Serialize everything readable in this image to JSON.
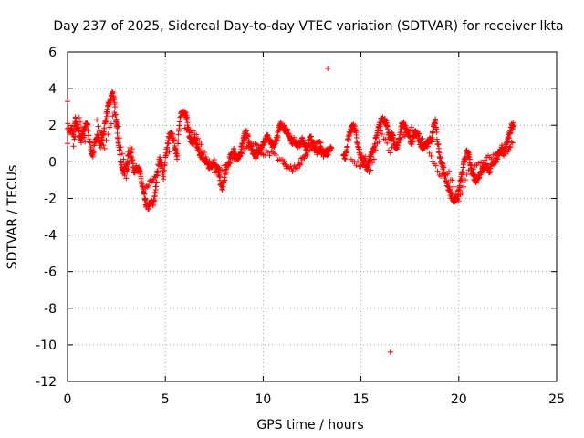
{
  "chart_data": {
    "type": "scatter",
    "title": "Day 237 of 2025, Sidereal Day-to-day VTEC variation (SDTVAR) for receiver lkta",
    "xlabel": "GPS time / hours",
    "ylabel": "SDTVAR / TECUs",
    "xlim": [
      0,
      25
    ],
    "ylim": [
      -12,
      6
    ],
    "xticks": [
      0,
      5,
      10,
      15,
      20,
      25
    ],
    "yticks": [
      -12,
      -10,
      -8,
      -6,
      -4,
      -2,
      0,
      2,
      4,
      6
    ],
    "x_tick_labels": [
      "0",
      "5",
      "10",
      "15",
      "20",
      "25"
    ],
    "y_tick_labels": [
      "-12",
      "-10",
      "-8",
      "-6",
      "-4",
      "-2",
      "0",
      "2",
      "4",
      "6"
    ],
    "grid": true,
    "marker": "+",
    "color": "#ff0000",
    "series": [
      {
        "name": "SDTVAR",
        "trace": [
          [
            0.0,
            2.0
          ],
          [
            0.1,
            1.6
          ],
          [
            0.2,
            1.8
          ],
          [
            0.3,
            1.4
          ],
          [
            0.4,
            2.3
          ],
          [
            0.5,
            1.9
          ],
          [
            0.6,
            1.5
          ],
          [
            0.7,
            1.2
          ],
          [
            0.8,
            1.7
          ],
          [
            0.9,
            1.9
          ],
          [
            1.0,
            2.1
          ],
          [
            1.1,
            1.3
          ],
          [
            1.2,
            0.6
          ],
          [
            1.3,
            0.4
          ],
          [
            1.4,
            1.0
          ],
          [
            1.5,
            1.5
          ],
          [
            1.6,
            1.2
          ],
          [
            1.7,
            0.9
          ],
          [
            1.8,
            1.4
          ],
          [
            1.9,
            2.0
          ],
          [
            2.0,
            2.6
          ],
          [
            2.1,
            3.1
          ],
          [
            2.2,
            3.4
          ],
          [
            2.3,
            3.8
          ],
          [
            2.4,
            3.2
          ],
          [
            2.5,
            2.0
          ],
          [
            2.6,
            1.0
          ],
          [
            2.7,
            0.2
          ],
          [
            2.8,
            -0.4
          ],
          [
            2.9,
            -0.7
          ],
          [
            3.0,
            -0.2
          ],
          [
            3.1,
            0.4
          ],
          [
            3.2,
            0.6
          ],
          [
            3.3,
            0.1
          ],
          [
            3.4,
            -0.5
          ],
          [
            3.5,
            -0.4
          ],
          [
            3.6,
            -0.3
          ],
          [
            3.7,
            -0.6
          ],
          [
            3.8,
            -1.2
          ],
          [
            3.9,
            -1.8
          ],
          [
            4.0,
            -2.3
          ],
          [
            4.1,
            -2.5
          ],
          [
            4.2,
            -2.4
          ],
          [
            4.3,
            -2.2
          ],
          [
            4.4,
            -2.3
          ],
          [
            4.5,
            -1.5
          ],
          [
            4.6,
            -0.5
          ],
          [
            4.7,
            0.2
          ],
          [
            4.8,
            -0.2
          ],
          [
            4.9,
            -0.8
          ],
          [
            5.0,
            0.2
          ],
          [
            5.1,
            0.8
          ],
          [
            5.2,
            1.4
          ],
          [
            5.3,
            1.5
          ],
          [
            5.4,
            1.3
          ],
          [
            5.5,
            0.8
          ],
          [
            5.6,
            0.3
          ],
          [
            5.7,
            1.8
          ],
          [
            5.8,
            2.6
          ],
          [
            5.9,
            2.7
          ],
          [
            6.0,
            2.8
          ],
          [
            6.1,
            2.4
          ],
          [
            6.2,
            1.6
          ],
          [
            6.3,
            1.2
          ],
          [
            6.4,
            1.0
          ],
          [
            6.5,
            1.2
          ],
          [
            6.6,
            0.9
          ],
          [
            6.7,
            0.6
          ],
          [
            6.8,
            0.4
          ],
          [
            6.9,
            0.2
          ],
          [
            7.0,
            0.1
          ],
          [
            7.1,
            0.0
          ],
          [
            7.2,
            -0.2
          ],
          [
            7.3,
            -0.3
          ],
          [
            7.4,
            -0.1
          ],
          [
            7.5,
            0.0
          ],
          [
            7.6,
            -0.2
          ],
          [
            7.7,
            -0.6
          ],
          [
            7.8,
            -1.0
          ],
          [
            7.9,
            -1.5
          ],
          [
            8.0,
            -1.1
          ],
          [
            8.1,
            -0.5
          ],
          [
            8.2,
            -0.2
          ],
          [
            8.3,
            0.2
          ],
          [
            8.4,
            0.4
          ],
          [
            8.5,
            0.6
          ],
          [
            8.6,
            0.3
          ],
          [
            8.7,
            0.1
          ],
          [
            8.8,
            0.3
          ],
          [
            8.9,
            0.9
          ],
          [
            9.0,
            1.3
          ],
          [
            9.1,
            1.6
          ],
          [
            9.2,
            1.4
          ],
          [
            9.3,
            1.0
          ],
          [
            9.4,
            0.7
          ],
          [
            9.5,
            0.5
          ],
          [
            9.6,
            0.3
          ],
          [
            9.7,
            0.5
          ],
          [
            9.8,
            0.7
          ],
          [
            9.9,
            0.6
          ],
          [
            10.0,
            1.0
          ],
          [
            10.1,
            1.3
          ],
          [
            10.2,
            1.4
          ],
          [
            10.3,
            1.2
          ],
          [
            10.4,
            1.0
          ],
          [
            10.5,
            0.8
          ],
          [
            10.6,
            1.0
          ],
          [
            10.7,
            1.3
          ],
          [
            10.8,
            1.7
          ],
          [
            10.9,
            2.1
          ],
          [
            11.0,
            2.0
          ],
          [
            11.1,
            1.8
          ],
          [
            11.2,
            1.7
          ],
          [
            11.3,
            1.5
          ],
          [
            11.4,
            1.3
          ],
          [
            11.5,
            1.1
          ],
          [
            11.6,
            1.2
          ],
          [
            11.7,
            1.0
          ],
          [
            11.8,
            0.9
          ],
          [
            11.9,
            1.0
          ],
          [
            12.0,
            1.2
          ],
          [
            12.1,
            0.9
          ],
          [
            12.2,
            0.8
          ],
          [
            12.3,
            1.0
          ],
          [
            12.4,
            1.3
          ],
          [
            12.5,
            1.2
          ],
          [
            12.6,
            0.8
          ],
          [
            12.7,
            0.6
          ],
          [
            12.8,
            0.5
          ],
          [
            12.9,
            0.7
          ],
          [
            13.0,
            0.6
          ],
          [
            13.1,
            0.4
          ],
          [
            13.2,
            0.6
          ],
          [
            13.3,
            0.5
          ],
          [
            13.4,
            0.7
          ],
          [
            13.5,
            0.6
          ],
          [
            14.1,
            0.5
          ],
          [
            14.2,
            0.2
          ],
          [
            14.3,
            1.0
          ],
          [
            14.4,
            1.5
          ],
          [
            14.5,
            1.8
          ],
          [
            14.6,
            2.0
          ],
          [
            14.7,
            1.8
          ],
          [
            14.8,
            1.0
          ],
          [
            14.9,
            0.6
          ],
          [
            15.0,
            0.3
          ],
          [
            15.1,
            0.0
          ],
          [
            15.2,
            0.2
          ],
          [
            15.3,
            -0.4
          ],
          [
            15.4,
            0.0
          ],
          [
            15.5,
            0.3
          ],
          [
            15.6,
            0.6
          ],
          [
            15.7,
            0.9
          ],
          [
            15.8,
            1.4
          ],
          [
            15.9,
            1.8
          ],
          [
            16.0,
            2.2
          ],
          [
            16.1,
            2.4
          ],
          [
            16.2,
            2.3
          ],
          [
            16.3,
            2.1
          ],
          [
            16.4,
            1.5
          ],
          [
            16.5,
            1.3
          ],
          [
            16.6,
            1.5
          ],
          [
            16.7,
            1.1
          ],
          [
            16.8,
            0.7
          ],
          [
            16.9,
            1.0
          ],
          [
            17.0,
            1.6
          ],
          [
            17.1,
            2.1
          ],
          [
            17.2,
            2.0
          ],
          [
            17.3,
            1.8
          ],
          [
            17.4,
            1.6
          ],
          [
            17.5,
            1.2
          ],
          [
            17.6,
            1.0
          ],
          [
            17.7,
            1.4
          ],
          [
            17.8,
            1.6
          ],
          [
            17.9,
            1.4
          ],
          [
            18.0,
            1.1
          ],
          [
            18.1,
            0.9
          ],
          [
            18.2,
            0.8
          ],
          [
            18.3,
            0.9
          ],
          [
            18.4,
            1.0
          ],
          [
            18.5,
            1.2
          ],
          [
            18.6,
            1.1
          ],
          [
            18.7,
            1.9
          ],
          [
            18.8,
            2.2
          ],
          [
            18.9,
            1.2
          ],
          [
            19.0,
            0.5
          ],
          [
            19.1,
            0.0
          ],
          [
            19.2,
            -0.3
          ],
          [
            19.3,
            -0.8
          ],
          [
            19.4,
            -1.2
          ],
          [
            19.5,
            -1.5
          ],
          [
            19.6,
            -1.8
          ],
          [
            19.7,
            -2.0
          ],
          [
            19.8,
            -2.1
          ],
          [
            19.9,
            -2.0
          ],
          [
            20.0,
            -1.6
          ],
          [
            20.1,
            -1.0
          ],
          [
            20.2,
            -0.5
          ],
          [
            20.3,
            0.2
          ],
          [
            20.4,
            0.5
          ],
          [
            20.5,
            0.4
          ],
          [
            20.6,
            -0.2
          ],
          [
            20.7,
            -0.6
          ],
          [
            20.8,
            -0.9
          ],
          [
            20.9,
            -1.0
          ],
          [
            21.0,
            -0.8
          ],
          [
            21.1,
            -0.6
          ],
          [
            21.2,
            -0.4
          ],
          [
            21.3,
            -0.3
          ],
          [
            21.4,
            -0.2
          ],
          [
            21.5,
            -0.4
          ],
          [
            21.6,
            -0.5
          ],
          [
            21.7,
            -0.2
          ],
          [
            21.8,
            0.0
          ],
          [
            21.9,
            0.1
          ],
          [
            22.0,
            0.3
          ],
          [
            22.1,
            0.6
          ],
          [
            22.2,
            0.8
          ],
          [
            22.3,
            0.5
          ],
          [
            22.4,
            0.8
          ],
          [
            22.5,
            1.2
          ],
          [
            22.6,
            1.5
          ],
          [
            22.7,
            1.9
          ],
          [
            22.8,
            2.0
          ]
        ],
        "secondary_trace": [
          [
            0.3,
            1.0
          ],
          [
            0.6,
            2.4
          ],
          [
            0.9,
            1.0
          ],
          [
            1.5,
            2.2
          ],
          [
            1.9,
            0.8
          ],
          [
            2.4,
            2.8
          ],
          [
            2.6,
            1.8
          ],
          [
            3.0,
            -0.9
          ],
          [
            3.3,
            0.8
          ],
          [
            4.0,
            -1.5
          ],
          [
            4.3,
            -1.0
          ],
          [
            4.6,
            -0.8
          ],
          [
            5.2,
            0.5
          ],
          [
            6.0,
            1.8
          ],
          [
            6.5,
            1.6
          ],
          [
            7.0,
            0.5
          ],
          [
            7.5,
            -0.6
          ],
          [
            8.0,
            -0.3
          ],
          [
            8.5,
            0.2
          ],
          [
            9.0,
            0.6
          ],
          [
            9.5,
            1.0
          ],
          [
            10.0,
            0.5
          ],
          [
            10.5,
            0.4
          ],
          [
            11.0,
            0.0
          ],
          [
            11.2,
            -0.3
          ],
          [
            11.5,
            -0.4
          ],
          [
            11.8,
            -0.2
          ],
          [
            12.0,
            0.2
          ],
          [
            12.3,
            0.5
          ],
          [
            12.7,
            1.1
          ],
          [
            13.0,
            0.9
          ],
          [
            14.5,
            0.1
          ],
          [
            15.0,
            -0.2
          ],
          [
            15.5,
            -0.5
          ],
          [
            16.0,
            1.6
          ],
          [
            16.5,
            0.6
          ],
          [
            17.0,
            1.2
          ],
          [
            17.5,
            1.8
          ],
          [
            18.0,
            1.5
          ],
          [
            18.5,
            0.6
          ],
          [
            19.0,
            -0.8
          ],
          [
            19.5,
            -0.6
          ],
          [
            20.0,
            -2.2
          ],
          [
            20.5,
            -0.3
          ],
          [
            21.0,
            -0.2
          ],
          [
            21.5,
            0.2
          ],
          [
            22.0,
            0.5
          ],
          [
            22.5,
            0.6
          ],
          [
            22.8,
            1.2
          ]
        ],
        "outliers": [
          [
            0.0,
            3.3
          ],
          [
            0.0,
            1.0
          ],
          [
            13.3,
            5.1
          ],
          [
            16.5,
            -10.4
          ]
        ]
      }
    ]
  }
}
